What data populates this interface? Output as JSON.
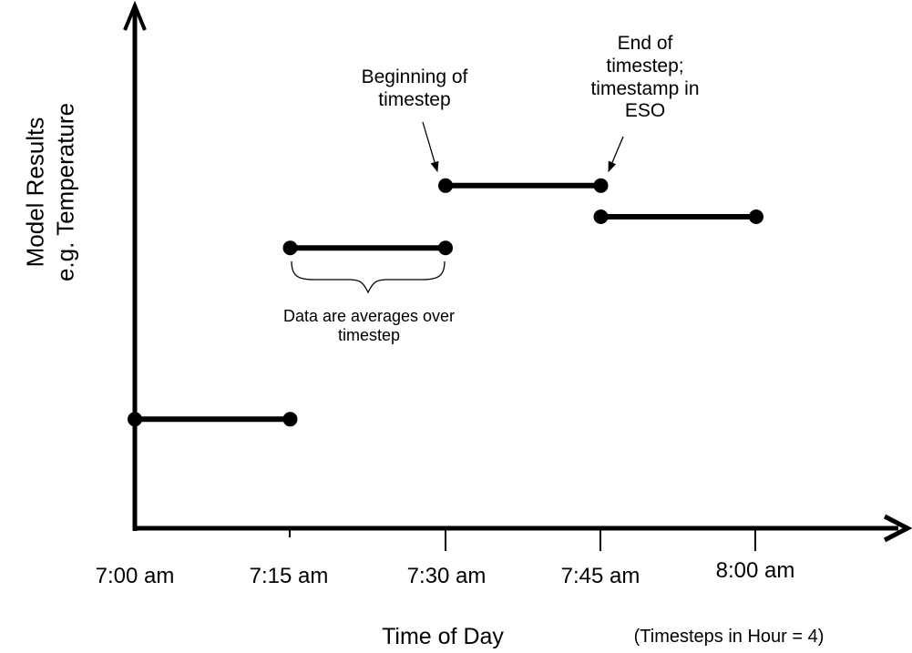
{
  "colors": {
    "background": "#ffffff",
    "ink": "#000000"
  },
  "y_axis_label": {
    "lines": [
      "Model Results",
      "e.g. Temperature"
    ]
  },
  "x_axis": {
    "label": "Time of Day",
    "note": "(Timesteps in Hour = 4)",
    "ticks": [
      "7:00 am",
      "7:15 am",
      "7:30 am",
      "7:45 am",
      "8:00 am"
    ]
  },
  "annotations": {
    "beginning": {
      "lines": [
        "Beginning of",
        "timestep"
      ]
    },
    "end": {
      "lines": [
        "End of",
        "timestep;",
        "timestamp in",
        "ESO"
      ]
    },
    "averages": {
      "lines": [
        "Data are averages over",
        "timestep"
      ]
    }
  },
  "chart_data": {
    "type": "line",
    "title": "",
    "xlabel": "Time of Day",
    "xlabel_note": "(Timesteps in Hour = 4)",
    "ylabel": "Model Results e.g. Temperature",
    "x_ticks": [
      "7:00 am",
      "7:15 am",
      "7:30 am",
      "7:45 am",
      "8:00 am"
    ],
    "y_axis": "unlabeled schematic scale (0-1 relative level)",
    "grid": false,
    "legend": false,
    "segments": [
      {
        "start": "7:00 am",
        "end": "7:15 am",
        "level": 0.21
      },
      {
        "start": "7:15 am",
        "end": "7:30 am",
        "level": 0.54
      },
      {
        "start": "7:30 am",
        "end": "7:45 am",
        "level": 0.66
      },
      {
        "start": "7:45 am",
        "end": "8:00 am",
        "level": 0.6
      }
    ],
    "annotations": [
      {
        "text": "Beginning of timestep",
        "points_to": "left dot of 7:30-7:45 segment"
      },
      {
        "text": "End of timestep; timestamp in ESO",
        "points_to": "right dot of 7:30-7:45 segment"
      },
      {
        "text": "Data are averages over timestep",
        "points_to": "brace under 7:15-7:30 segment"
      }
    ]
  }
}
